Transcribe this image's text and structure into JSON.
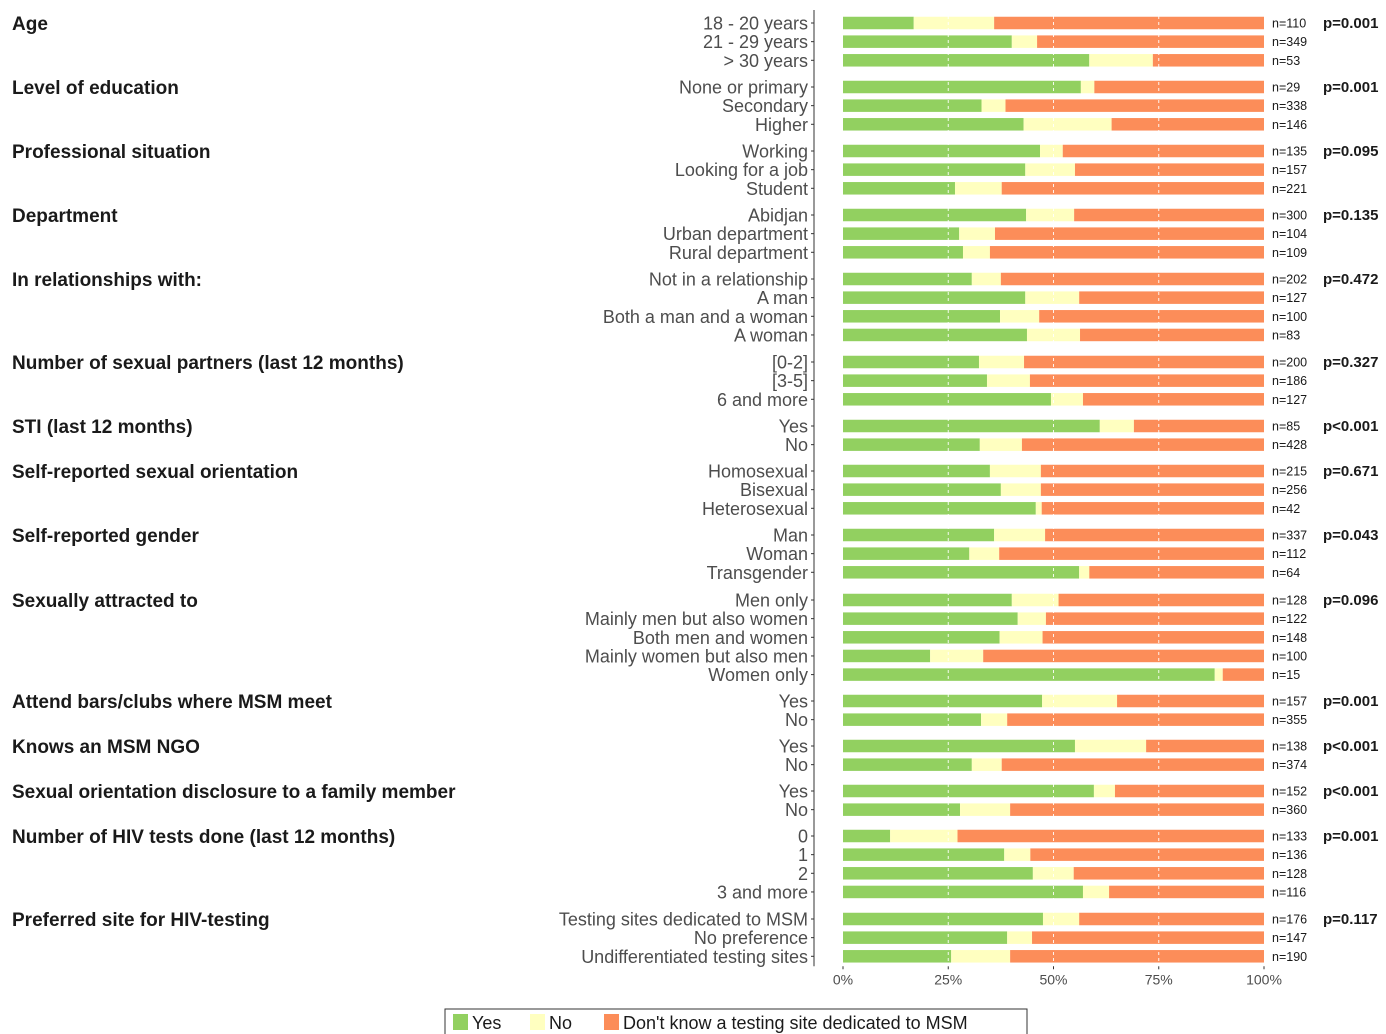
{
  "chart_data": {
    "type": "bar",
    "orientation": "horizontal",
    "stacked": true,
    "normalized": true,
    "xlim": [
      0,
      100
    ],
    "x_ticks": [
      "0%",
      "25%",
      "50%",
      "75%",
      "100%"
    ],
    "grid": false,
    "legend_position": "bottom",
    "series": [
      {
        "name": "Yes",
        "color": "#92d060"
      },
      {
        "name": "No",
        "color": "#ffffc0"
      },
      {
        "name": "Don't know a testing site dedicated to MSM",
        "color": "#fc8d59"
      }
    ],
    "groups": [
      {
        "title": "Age",
        "p": "p=0.001",
        "rows": [
          {
            "label": "18 - 20 years",
            "n": "n=110",
            "yes": 16.8,
            "no": 19.1
          },
          {
            "label": "21 - 29 years",
            "n": "n=349",
            "yes": 40.1,
            "no": 6.0
          },
          {
            "label": "> 30 years",
            "n": "n=53",
            "yes": 58.5,
            "no": 15.1
          }
        ]
      },
      {
        "title": "Level of education",
        "p": "p=0.001",
        "rows": [
          {
            "label": "None or primary",
            "n": "n=29",
            "yes": 56.5,
            "no": 3.2
          },
          {
            "label": "Secondary",
            "n": "n=338",
            "yes": 32.9,
            "no": 5.7
          },
          {
            "label": "Higher",
            "n": "n=146",
            "yes": 42.9,
            "no": 20.9
          }
        ]
      },
      {
        "title": "Professional situation",
        "p": "p=0.095",
        "rows": [
          {
            "label": "Working",
            "n": "n=135",
            "yes": 46.8,
            "no": 5.4
          },
          {
            "label": "Looking for a job",
            "n": "n=157",
            "yes": 43.3,
            "no": 11.8
          },
          {
            "label": "Student",
            "n": "n=221",
            "yes": 26.6,
            "no": 11.1
          }
        ]
      },
      {
        "title": "Department",
        "p": "p=0.135",
        "rows": [
          {
            "label": "Abidjan",
            "n": "n=300",
            "yes": 43.5,
            "no": 11.4
          },
          {
            "label": "Urban department",
            "n": "n=104",
            "yes": 27.6,
            "no": 8.5
          },
          {
            "label": "Rural department",
            "n": "n=109",
            "yes": 28.5,
            "no": 6.4
          }
        ]
      },
      {
        "title": "In relationships with:",
        "p": "p=0.472",
        "rows": [
          {
            "label": "Not in a relationship",
            "n": "n=202",
            "yes": 30.6,
            "no": 6.9
          },
          {
            "label": "A man",
            "n": "n=127",
            "yes": 43.3,
            "no": 12.8
          },
          {
            "label": "Both a man and a woman",
            "n": "n=100",
            "yes": 37.3,
            "no": 9.3
          },
          {
            "label": "A woman",
            "n": "n=83",
            "yes": 43.7,
            "no": 12.6
          }
        ]
      },
      {
        "title": "Number of sexual partners (last 12 months)",
        "p": "p=0.327",
        "rows": [
          {
            "label": "[0-2]",
            "n": "n=200",
            "yes": 32.3,
            "no": 10.7
          },
          {
            "label": "[3-5]",
            "n": "n=186",
            "yes": 34.2,
            "no": 10.2
          },
          {
            "label": "6 and more",
            "n": "n=127",
            "yes": 49.4,
            "no": 7.6
          }
        ]
      },
      {
        "title": "STI (last 12 months)",
        "p": "p<0.001",
        "rows": [
          {
            "label": "Yes",
            "n": "n=85",
            "yes": 61.0,
            "no": 8.1
          },
          {
            "label": "No",
            "n": "n=428",
            "yes": 32.5,
            "no": 10.0
          }
        ]
      },
      {
        "title": "Self-reported sexual orientation",
        "p": "p=0.671",
        "rows": [
          {
            "label": "Homosexual",
            "n": "n=215",
            "yes": 34.9,
            "no": 12.1
          },
          {
            "label": "Bisexual",
            "n": "n=256",
            "yes": 37.5,
            "no": 9.5
          },
          {
            "label": "Heterosexual",
            "n": "n=42",
            "yes": 45.8,
            "no": 1.4
          }
        ]
      },
      {
        "title": "Self-reported gender",
        "p": "p=0.043",
        "rows": [
          {
            "label": "Man",
            "n": "n=337",
            "yes": 35.9,
            "no": 12.1
          },
          {
            "label": "Woman",
            "n": "n=112",
            "yes": 30.0,
            "no": 7.1
          },
          {
            "label": "Transgender",
            "n": "n=64",
            "yes": 56.1,
            "no": 2.4
          }
        ]
      },
      {
        "title": "Sexually attracted to",
        "p": "p=0.096",
        "rows": [
          {
            "label": "Men only",
            "n": "n=128",
            "yes": 40.1,
            "no": 11.1
          },
          {
            "label": "Mainly men but also women",
            "n": "n=122",
            "yes": 41.5,
            "no": 6.7
          },
          {
            "label": "Both men and women",
            "n": "n=148",
            "yes": 37.2,
            "no": 10.2
          },
          {
            "label": "Mainly women but also men",
            "n": "n=100",
            "yes": 20.7,
            "no": 12.6
          },
          {
            "label": "Women only",
            "n": "n=15",
            "yes": 88.3,
            "no": 1.9
          }
        ]
      },
      {
        "title": "Attend bars/clubs where MSM meet",
        "p": "p=0.001",
        "rows": [
          {
            "label": "Yes",
            "n": "n=157",
            "yes": 47.3,
            "no": 17.8
          },
          {
            "label": "No",
            "n": "n=355",
            "yes": 32.8,
            "no": 6.2
          }
        ]
      },
      {
        "title": "Knows an MSM NGO",
        "p": "p<0.001",
        "rows": [
          {
            "label": "Yes",
            "n": "n=138",
            "yes": 55.1,
            "no": 16.9
          },
          {
            "label": "No",
            "n": "n=374",
            "yes": 30.6,
            "no": 7.1
          }
        ]
      },
      {
        "title": "Sexual orientation disclosure to a family member",
        "p": "p<0.001",
        "rows": [
          {
            "label": "Yes",
            "n": "n=152",
            "yes": 59.6,
            "no": 5.0
          },
          {
            "label": "No",
            "n": "n=360",
            "yes": 27.8,
            "no": 11.9
          }
        ]
      },
      {
        "title": "Number of HIV tests done (last 12 months)",
        "p": "p=0.001",
        "rows": [
          {
            "label": "0",
            "n": "n=133",
            "yes": 11.2,
            "no": 16.0
          },
          {
            "label": "1",
            "n": "n=136",
            "yes": 38.3,
            "no": 6.2
          },
          {
            "label": "2",
            "n": "n=128",
            "yes": 45.1,
            "no": 9.7
          },
          {
            "label": "3 and more",
            "n": "n=116",
            "yes": 57.0,
            "no": 6.2
          }
        ]
      },
      {
        "title": "Preferred site for HIV-testing",
        "p": "p=0.117",
        "rows": [
          {
            "label": "Testing sites dedicated to MSM",
            "n": "n=176",
            "yes": 47.5,
            "no": 8.6
          },
          {
            "label": "No preference",
            "n": "n=147",
            "yes": 39.0,
            "no": 5.9
          },
          {
            "label": "Undifferentiated testing sites",
            "n": "n=190",
            "yes": 25.7,
            "no": 14.0
          }
        ]
      }
    ]
  }
}
